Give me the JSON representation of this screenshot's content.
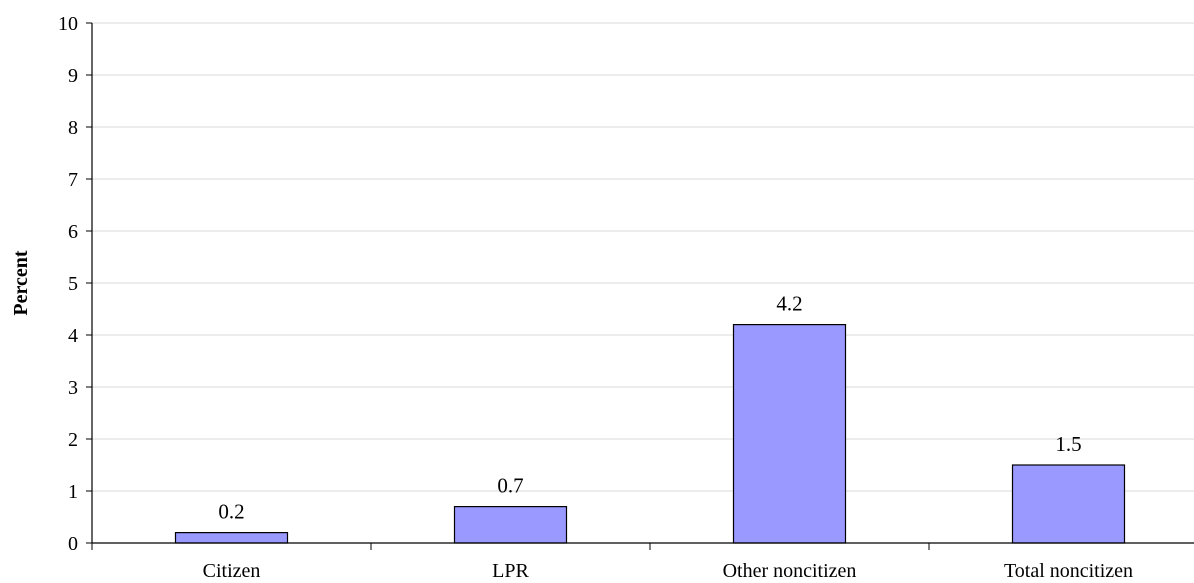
{
  "chart_data": {
    "type": "bar",
    "categories": [
      "Citizen",
      "LPR",
      "Other noncitizen",
      "Total noncitizen"
    ],
    "values": [
      0.2,
      0.7,
      4.2,
      1.5
    ],
    "data_labels": [
      "0.2",
      "0.7",
      "4.2",
      "1.5"
    ],
    "title": "",
    "xlabel": "",
    "ylabel": "Percent",
    "ylim": [
      0,
      10
    ],
    "yticks": [
      0,
      1,
      2,
      3,
      4,
      5,
      6,
      7,
      8,
      9,
      10
    ],
    "grid": true,
    "legend": "none",
    "colors": {
      "bar_fill": "#9999ff",
      "bar_stroke": "#000000",
      "grid": "#d9d9d9",
      "axis": "#000000"
    }
  }
}
